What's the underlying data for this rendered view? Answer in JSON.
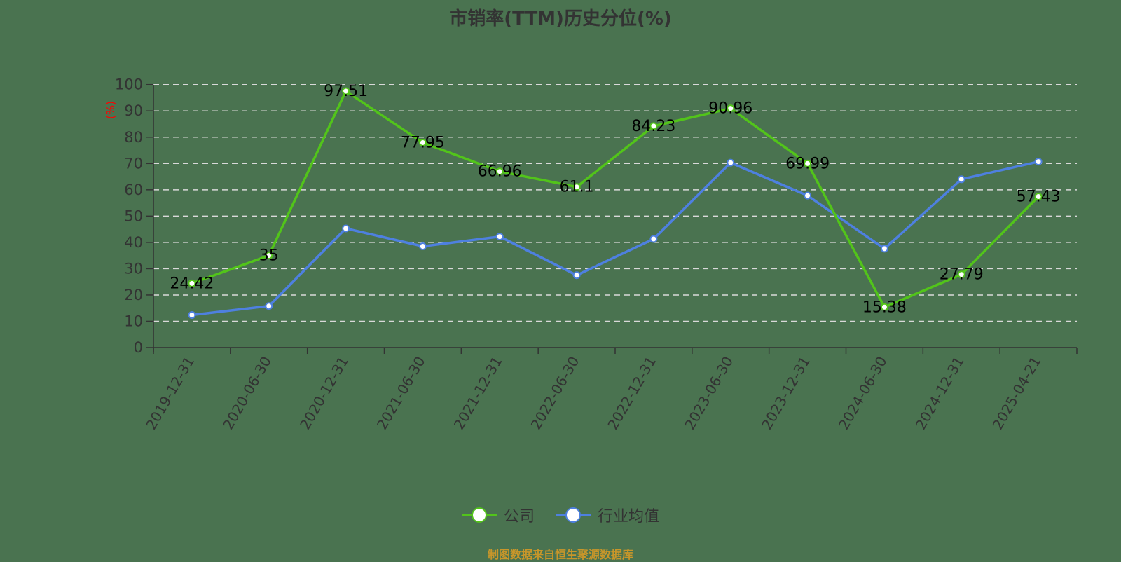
{
  "title": "市销率(TTM)历史分位(%)",
  "y_axis_unit": "(%)",
  "footer": "制图数据来自恒生聚源数据库",
  "colors": {
    "background": "#4a7350",
    "company": "#52c41a",
    "industry": "#4e80e0",
    "grid": "#d9d9d9",
    "axis": "#333333",
    "unit_label": "#ff0000",
    "footer": "#c8962a"
  },
  "legend": [
    {
      "name": "公司",
      "color": "#52c41a"
    },
    {
      "name": "行业均值",
      "color": "#4e80e0"
    }
  ],
  "chart_data": {
    "type": "line",
    "title": "市销率(TTM)历史分位(%)",
    "xlabel": "",
    "ylabel": "(%)",
    "ylim": [
      0,
      100
    ],
    "yticks": [
      0,
      10,
      20,
      30,
      40,
      50,
      60,
      70,
      80,
      90,
      100
    ],
    "grid": "horizontal dashed",
    "legend_position": "bottom",
    "categories": [
      "2019-12-31",
      "2020-06-30",
      "2020-12-31",
      "2021-06-30",
      "2021-12-31",
      "2022-06-30",
      "2022-12-31",
      "2023-06-30",
      "2023-12-31",
      "2024-06-30",
      "2024-12-31",
      "2025-04-21"
    ],
    "series": [
      {
        "name": "公司",
        "color": "#52c41a",
        "show_labels": true,
        "values": [
          24.42,
          35,
          97.51,
          77.95,
          66.96,
          61.1,
          84.23,
          90.96,
          69.99,
          15.38,
          27.79,
          57.43
        ]
      },
      {
        "name": "行业均值",
        "color": "#4e80e0",
        "show_labels": false,
        "values": [
          12.4,
          15.8,
          45.3,
          38.5,
          42.2,
          27.5,
          41.3,
          70.3,
          57.8,
          37.6,
          64.0,
          70.7
        ]
      }
    ]
  }
}
